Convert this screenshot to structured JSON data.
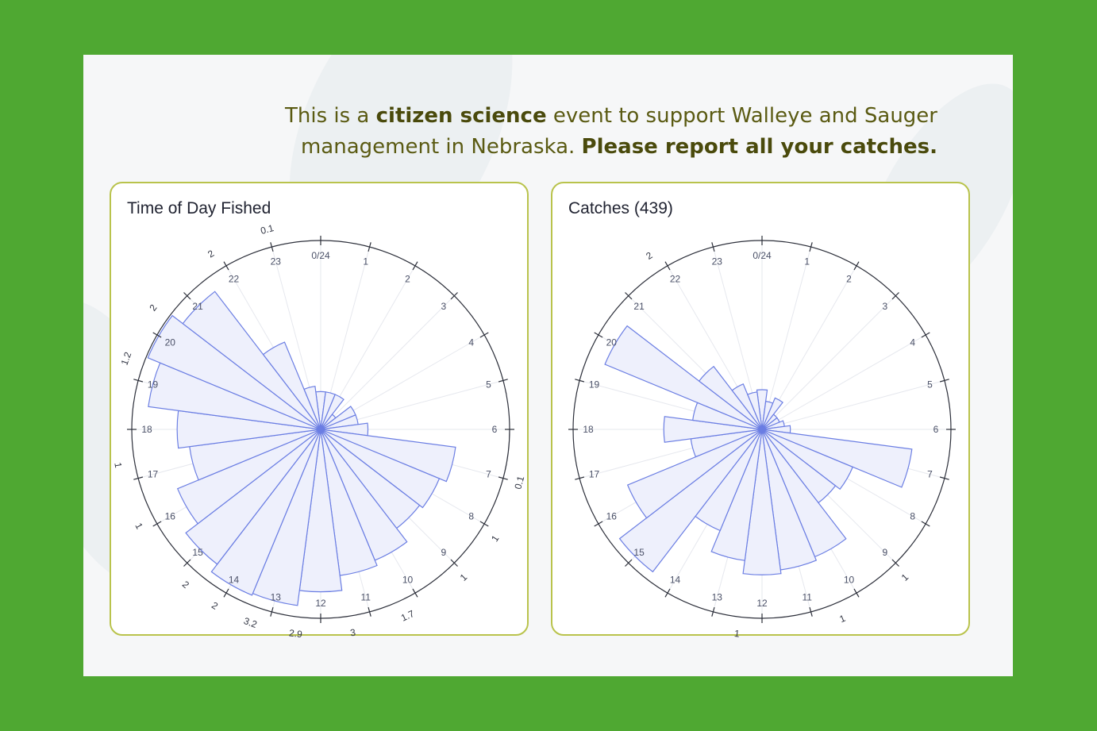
{
  "banner": {
    "line1_a": "This is a ",
    "line1_b": "citizen science",
    "line1_c": " event to support Walleye and Sauger",
    "line2_a": "management in Nebraska. ",
    "line2_b": "Please report all your catches."
  },
  "colors": {
    "frame": "#4fa832",
    "card_border": "#b9c34c",
    "bar_fill": "#eef0fc",
    "bar_stroke": "#6b7ee3",
    "text_olive": "#5a5a12"
  },
  "chart_data": [
    {
      "type": "polar-bar",
      "title": "Time of Day Fished",
      "categories": [
        "0/24",
        "1",
        "2",
        "3",
        "4",
        "5",
        "6",
        "7",
        "8",
        "9",
        "10",
        "11",
        "12",
        "13",
        "14",
        "15",
        "16",
        "17",
        "18",
        "19",
        "20",
        "21",
        "22",
        "23"
      ],
      "values": [
        0.2,
        0.2,
        0.2,
        0.1,
        0.2,
        0.2,
        0.25,
        0.72,
        0.68,
        0.66,
        0.75,
        0.78,
        0.86,
        0.94,
        0.95,
        0.9,
        0.82,
        0.7,
        0.76,
        0.92,
        0.99,
        0.92,
        0.5,
        0.23
      ],
      "ylim": [
        0,
        1
      ],
      "direction": "clockwise",
      "zero_at": "top",
      "outer_labels": [
        {
          "angle": 345,
          "text": "0.1"
        },
        {
          "angle": 328,
          "text": "2"
        },
        {
          "angle": 306,
          "text": "2"
        },
        {
          "angle": 290,
          "text": "1.2"
        },
        {
          "angle": 260,
          "text": "1"
        },
        {
          "angle": 242,
          "text": "1"
        },
        {
          "angle": 221,
          "text": "2"
        },
        {
          "angle": 211,
          "text": "2"
        },
        {
          "angle": 200,
          "text": "3.2"
        },
        {
          "angle": 187,
          "text": "2.9"
        },
        {
          "angle": 171,
          "text": "3"
        },
        {
          "angle": 155,
          "text": "1.7"
        },
        {
          "angle": 136,
          "text": "1"
        },
        {
          "angle": 122,
          "text": "1"
        },
        {
          "angle": 105,
          "text": "0.1"
        }
      ]
    },
    {
      "type": "polar-bar",
      "title": "Catches (439)",
      "categories": [
        "0/24",
        "1",
        "2",
        "3",
        "4",
        "5",
        "6",
        "7",
        "8",
        "9",
        "10",
        "11",
        "12",
        "13",
        "14",
        "15",
        "16",
        "17",
        "18",
        "19",
        "20",
        "21",
        "22",
        "23"
      ],
      "values": [
        0.21,
        0.15,
        0.18,
        0.1,
        0.1,
        0.12,
        0.15,
        0.8,
        0.52,
        0.49,
        0.73,
        0.75,
        0.77,
        0.7,
        0.58,
        0.95,
        0.77,
        0.38,
        0.52,
        0.37,
        0.9,
        0.42,
        0.26,
        0.2
      ],
      "ylim": [
        0,
        1
      ],
      "direction": "clockwise",
      "zero_at": "top",
      "outer_labels": [
        {
          "angle": 327,
          "text": "2"
        },
        {
          "angle": 136,
          "text": "1"
        },
        {
          "angle": 157,
          "text": "1"
        },
        {
          "angle": 187,
          "text": "1"
        }
      ]
    }
  ]
}
